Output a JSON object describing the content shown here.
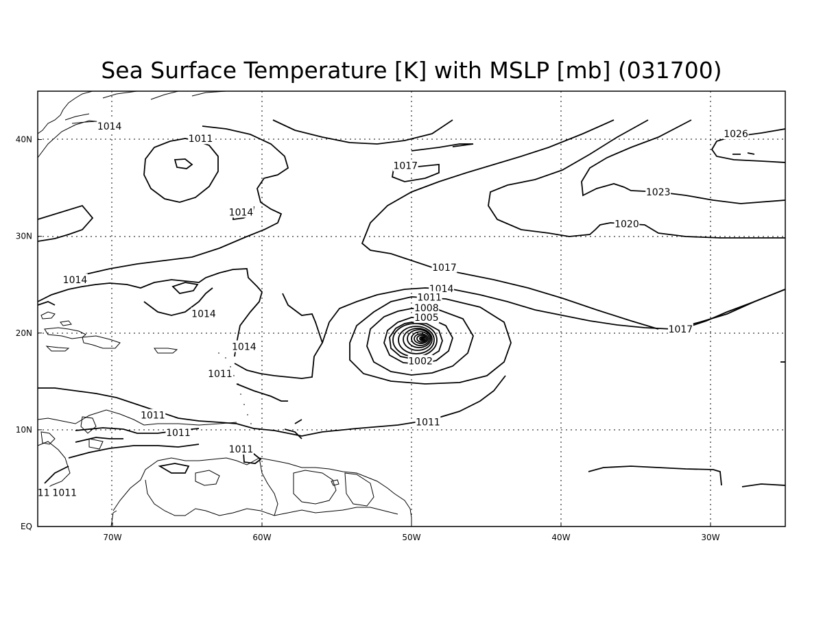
{
  "title": "Sea Surface Temperature [K] with MSLP [mb] (031700)",
  "axes": {
    "x_ticks": [
      "70W",
      "60W",
      "50W",
      "40W",
      "30W"
    ],
    "y_ticks": [
      "40N",
      "30N",
      "20N",
      "10N",
      "EQ"
    ],
    "lon_range": [
      -75,
      -25
    ],
    "lat_range": [
      0,
      45
    ],
    "grid": true
  },
  "contour_labels": [
    {
      "text": "1014",
      "lon": -70.2,
      "lat": 41.4
    },
    {
      "text": "1011",
      "lon": -64.1,
      "lat": 40.1
    },
    {
      "text": "1014",
      "lon": -61.4,
      "lat": 32.5
    },
    {
      "text": "1014",
      "lon": -72.5,
      "lat": 25.5
    },
    {
      "text": "1014",
      "lon": -63.9,
      "lat": 22.0
    },
    {
      "text": "1014",
      "lon": -61.2,
      "lat": 18.6
    },
    {
      "text": "1011",
      "lon": -62.8,
      "lat": 15.8
    },
    {
      "text": "1011",
      "lon": -61.4,
      "lat": 8.0
    },
    {
      "text": "1011",
      "lon": -73.2,
      "lat": 3.5
    },
    {
      "text": "1011",
      "lon": -67.3,
      "lat": 11.5
    },
    {
      "text": "1011",
      "lon": -65.6,
      "lat": 9.7
    },
    {
      "text": "1011",
      "lon": -48.9,
      "lat": 10.8
    },
    {
      "text": "1017",
      "lon": -50.4,
      "lat": 37.3
    },
    {
      "text": "1017",
      "lon": -47.8,
      "lat": 26.8
    },
    {
      "text": "1014",
      "lon": -48.0,
      "lat": 24.6
    },
    {
      "text": "1011",
      "lon": -48.8,
      "lat": 23.7
    },
    {
      "text": "1008",
      "lon": -49.0,
      "lat": 22.6
    },
    {
      "text": "1005",
      "lon": -49.0,
      "lat": 21.6
    },
    {
      "text": "1002",
      "lon": -49.4,
      "lat": 17.1
    },
    {
      "text": "1017",
      "lon": -32.0,
      "lat": 20.4
    },
    {
      "text": "1020",
      "lon": -35.6,
      "lat": 31.3
    },
    {
      "text": "1023",
      "lon": -33.5,
      "lat": 34.6
    },
    {
      "text": "1026",
      "lon": -28.3,
      "lat": 40.6
    },
    {
      "text": "11",
      "lon": -74.6,
      "lat": 3.5
    }
  ],
  "colors": {
    "line": "#000000",
    "grid": "#000000",
    "background": "#ffffff"
  }
}
